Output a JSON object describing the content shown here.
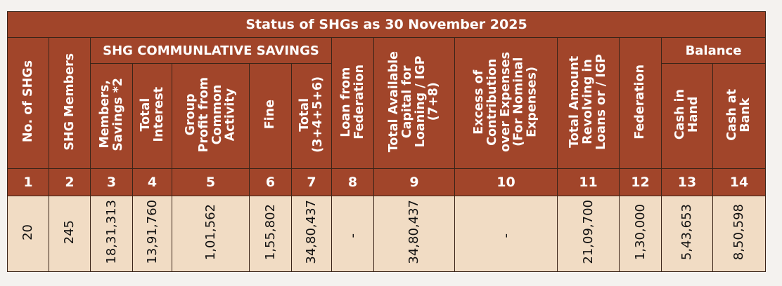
{
  "title": "Status of SHGs as 30 November 2025",
  "group_headers": {
    "savings": "SHG COMMUNLATIVE SAVINGS",
    "balance": "Balance"
  },
  "columns": [
    {
      "no": "1",
      "label": "No. of SHGs"
    },
    {
      "no": "2",
      "label": "SHG Members"
    },
    {
      "no": "3",
      "label": "Members,\nSavings *2"
    },
    {
      "no": "4",
      "label": "Total\nInterest"
    },
    {
      "no": "5",
      "label": "Group\nProfit from\nCommon\nActivity"
    },
    {
      "no": "6",
      "label": "Fine"
    },
    {
      "no": "7",
      "label": "Total\n(3+4+5+6)"
    },
    {
      "no": "8",
      "label": "Loan from\nFederation"
    },
    {
      "no": "9",
      "label": "Total Available\nCapital for\nLoaning / IGP\n(7+8)"
    },
    {
      "no": "10",
      "label": "Excess of\nContribution\nover Expenses\n(For Nominal\nExpenses)"
    },
    {
      "no": "11",
      "label": "Total Amount\nRevolving in\nLoans or / IGP"
    },
    {
      "no": "12",
      "label": "Federation"
    },
    {
      "no": "13",
      "label": "Cash in\nHand"
    },
    {
      "no": "14",
      "label": "Cash at\nBank"
    }
  ],
  "values": [
    "20",
    "245",
    "18,31,313",
    "13,91,760",
    "1,01,562",
    "1,55,802",
    "34,80,437",
    "-",
    "34,80,437",
    "-",
    "21,09,700",
    "1,30,000",
    "5,43,653",
    "8,50,598"
  ]
}
